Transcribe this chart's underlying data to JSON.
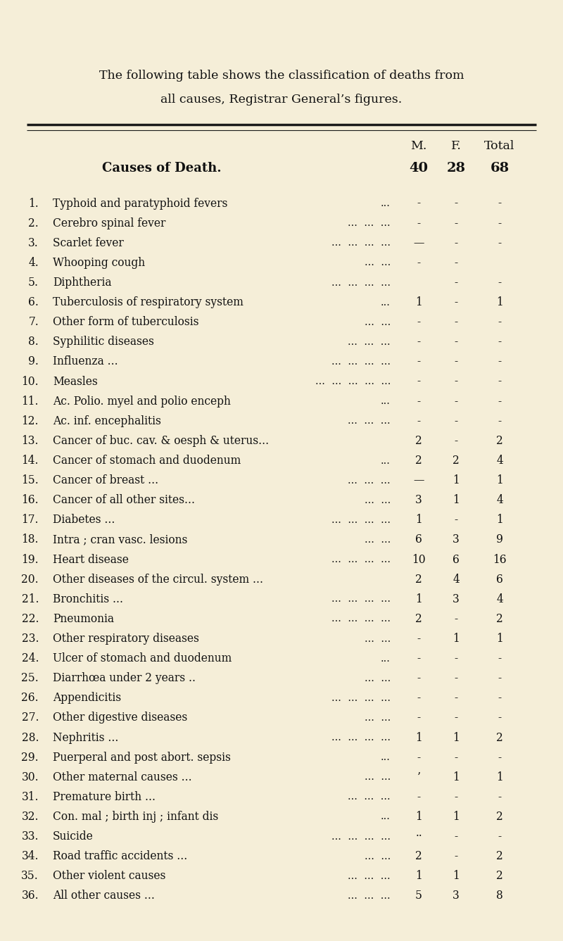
{
  "bg_color": "#f5eed8",
  "title_line1": "The following table shows the classification of deaths from",
  "title_line2": "all causes, Registrar General’s figures.",
  "header_m": "M.",
  "header_f": "F.",
  "header_total": "Total",
  "header_col": "Causes of Death.",
  "subheader_m": "40",
  "subheader_f": "28",
  "subheader_total": "68",
  "rows": [
    [
      "1.",
      "Typhoid and paratyphoid fevers",
      "...",
      "-",
      "-",
      "-"
    ],
    [
      "2.",
      "Cerebro spinal fever",
      "...  ...  ...",
      "-",
      "-",
      "-"
    ],
    [
      "3.",
      "Scarlet fever",
      "...  ...  ...  ...",
      "—",
      "-",
      "-"
    ],
    [
      "4.",
      "Whooping cough",
      "...  ...",
      "-",
      "-",
      ""
    ],
    [
      "5.",
      "Diphtheria",
      "...  ...  ...  ...",
      "",
      "-",
      "-"
    ],
    [
      "6.",
      "Tuberculosis of respiratory system",
      "...",
      "1",
      "-",
      "1"
    ],
    [
      "7.",
      "Other form of tuberculosis",
      "...  ...",
      "-",
      "-",
      "-"
    ],
    [
      "8.",
      "Syphilitic diseases",
      "...  ...  ...",
      "-",
      "-",
      "-"
    ],
    [
      "9.",
      "Influenza ...",
      "...  ...  ...  ...",
      "-",
      "-",
      "-"
    ],
    [
      "10.",
      "Measles",
      "...  ...  ...  ...  ...",
      "-",
      "-",
      "-"
    ],
    [
      "11.",
      "Ac. Polio. myel and polio enceph",
      "...",
      "-",
      "-",
      "-"
    ],
    [
      "12.",
      "Ac. inf. encephalitis",
      "...  ...  ...",
      "-",
      "-",
      "-"
    ],
    [
      "13.",
      "Cancer of buc. cav. & oesph & uterus...",
      "",
      "2",
      "-",
      "2"
    ],
    [
      "14.",
      "Cancer of stomach and duodenum",
      "...",
      "2",
      "2",
      "4"
    ],
    [
      "15.",
      "Cancer of breast ...",
      "...  ...  ...",
      "—",
      "1",
      "1"
    ],
    [
      "16.",
      "Cancer of all other sites...",
      "...  ...",
      "3",
      "1",
      "4"
    ],
    [
      "17.",
      "Diabetes ...",
      "...  ...  ...  ...",
      "1",
      "-",
      "1"
    ],
    [
      "18.",
      "Intra ; cran vasc. lesions",
      "...  ...",
      "6",
      "3",
      "9"
    ],
    [
      "19.",
      "Heart disease",
      "...  ...  ...  ...",
      "10",
      "6",
      "16"
    ],
    [
      "20.",
      "Other diseases of the circul. system ...",
      "",
      "2",
      "4",
      "6"
    ],
    [
      "21.",
      "Bronchitis ...",
      "...  ...  ...  ...",
      "1",
      "3",
      "4"
    ],
    [
      "22.",
      "Pneumonia",
      "...  ...  ...  ...",
      "2",
      "-",
      "2"
    ],
    [
      "23.",
      "Other respiratory diseases",
      "...  ...",
      "-",
      "1",
      "1"
    ],
    [
      "24.",
      "Ulcer of stomach and duodenum",
      "...",
      "-",
      "-",
      "-"
    ],
    [
      "25.",
      "Diarrhœa under 2 years ..",
      "...  ...",
      "-",
      "-",
      "-"
    ],
    [
      "26.",
      "Appendicitis",
      "...  ...  ...  ...",
      "-",
      "-",
      "-"
    ],
    [
      "27.",
      "Other digestive diseases",
      "...  ...",
      "-",
      "-",
      "-"
    ],
    [
      "28.",
      "Nephritis ...",
      "...  ...  ...  ...",
      "1",
      "1",
      "2"
    ],
    [
      "29.",
      "Puerperal and post abort. sepsis",
      "...",
      "-",
      "-",
      "-"
    ],
    [
      "30.",
      "Other maternal causes ...",
      "...  ...",
      "’",
      "1",
      "1"
    ],
    [
      "31.",
      "Premature birth ...",
      "...  ...  ...",
      "-",
      "-",
      "-"
    ],
    [
      "32.",
      "Con. mal ; birth inj ; infant dis",
      "...",
      "1",
      "1",
      "2"
    ],
    [
      "33.",
      "Suicide",
      "...  ...  ...  ...",
      "··",
      "-",
      "-"
    ],
    [
      "34.",
      "Road traffic accidents ...",
      "...  ...",
      "2",
      "-",
      "2"
    ],
    [
      "35.",
      "Other violent causes",
      "...  ...  ...",
      "1",
      "1",
      "2"
    ],
    [
      "36.",
      "All other causes ...",
      "...  ...  ...",
      "5",
      "3",
      "8"
    ]
  ],
  "text_color": "#111111",
  "line_color": "#1a1a1a",
  "title_fontsize": 12.5,
  "header_fontsize": 12.5,
  "row_fontsize": 11.2
}
